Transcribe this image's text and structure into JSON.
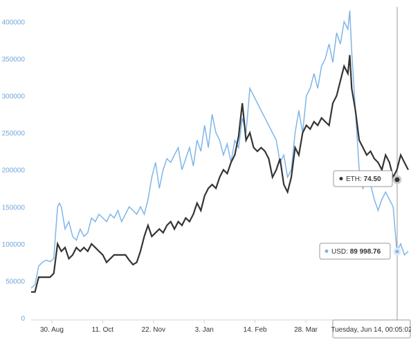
{
  "chart_data": {
    "type": "line",
    "x_labels": [
      "30. Aug",
      "11. Oct",
      "22. Nov",
      "3. Jan",
      "14. Feb",
      "28. Mar"
    ],
    "y_ticks": [
      0,
      50000,
      100000,
      150000,
      200000,
      250000,
      300000,
      350000,
      400000
    ],
    "ylim": [
      0,
      420000
    ],
    "grid": false,
    "colors": {
      "usd": "#7eb5e8",
      "eth": "#333333",
      "axis": "#ccd6eb",
      "crosshair": "#999999"
    },
    "series": [
      {
        "name": "USD",
        "points": [
          [
            0.0,
            40000
          ],
          [
            0.01,
            45000
          ],
          [
            0.02,
            70000
          ],
          [
            0.03,
            75000
          ],
          [
            0.04,
            78000
          ],
          [
            0.05,
            76000
          ],
          [
            0.06,
            80000
          ],
          [
            0.07,
            150000
          ],
          [
            0.075,
            155000
          ],
          [
            0.08,
            150000
          ],
          [
            0.09,
            120000
          ],
          [
            0.1,
            130000
          ],
          [
            0.11,
            110000
          ],
          [
            0.12,
            105000
          ],
          [
            0.13,
            120000
          ],
          [
            0.14,
            110000
          ],
          [
            0.15,
            115000
          ],
          [
            0.16,
            135000
          ],
          [
            0.17,
            130000
          ],
          [
            0.18,
            140000
          ],
          [
            0.19,
            135000
          ],
          [
            0.2,
            130000
          ],
          [
            0.21,
            140000
          ],
          [
            0.22,
            135000
          ],
          [
            0.23,
            145000
          ],
          [
            0.24,
            130000
          ],
          [
            0.25,
            140000
          ],
          [
            0.26,
            150000
          ],
          [
            0.27,
            145000
          ],
          [
            0.28,
            140000
          ],
          [
            0.29,
            150000
          ],
          [
            0.3,
            140000
          ],
          [
            0.31,
            160000
          ],
          [
            0.32,
            190000
          ],
          [
            0.33,
            210000
          ],
          [
            0.34,
            175000
          ],
          [
            0.35,
            200000
          ],
          [
            0.36,
            215000
          ],
          [
            0.37,
            210000
          ],
          [
            0.38,
            220000
          ],
          [
            0.39,
            230000
          ],
          [
            0.4,
            200000
          ],
          [
            0.41,
            215000
          ],
          [
            0.42,
            230000
          ],
          [
            0.43,
            205000
          ],
          [
            0.44,
            240000
          ],
          [
            0.45,
            225000
          ],
          [
            0.46,
            260000
          ],
          [
            0.47,
            230000
          ],
          [
            0.48,
            275000
          ],
          [
            0.49,
            250000
          ],
          [
            0.5,
            240000
          ],
          [
            0.51,
            220000
          ],
          [
            0.52,
            235000
          ],
          [
            0.53,
            210000
          ],
          [
            0.54,
            240000
          ],
          [
            0.55,
            230000
          ],
          [
            0.56,
            270000
          ],
          [
            0.57,
            250000
          ],
          [
            0.58,
            310000
          ],
          [
            0.59,
            300000
          ],
          [
            0.6,
            290000
          ],
          [
            0.61,
            280000
          ],
          [
            0.62,
            270000
          ],
          [
            0.63,
            260000
          ],
          [
            0.64,
            250000
          ],
          [
            0.65,
            240000
          ],
          [
            0.66,
            210000
          ],
          [
            0.67,
            220000
          ],
          [
            0.68,
            190000
          ],
          [
            0.69,
            200000
          ],
          [
            0.7,
            250000
          ],
          [
            0.71,
            280000
          ],
          [
            0.72,
            250000
          ],
          [
            0.73,
            300000
          ],
          [
            0.74,
            310000
          ],
          [
            0.75,
            330000
          ],
          [
            0.76,
            310000
          ],
          [
            0.77,
            340000
          ],
          [
            0.78,
            350000
          ],
          [
            0.79,
            370000
          ],
          [
            0.8,
            345000
          ],
          [
            0.81,
            385000
          ],
          [
            0.82,
            370000
          ],
          [
            0.83,
            400000
          ],
          [
            0.84,
            390000
          ],
          [
            0.845,
            415000
          ],
          [
            0.85,
            360000
          ],
          [
            0.86,
            280000
          ],
          [
            0.87,
            200000
          ],
          [
            0.88,
            175000
          ],
          [
            0.89,
            190000
          ],
          [
            0.9,
            180000
          ],
          [
            0.91,
            160000
          ],
          [
            0.92,
            145000
          ],
          [
            0.93,
            160000
          ],
          [
            0.94,
            170000
          ],
          [
            0.95,
            160000
          ],
          [
            0.96,
            150000
          ],
          [
            0.97,
            90000
          ],
          [
            0.98,
            100000
          ],
          [
            0.99,
            85000
          ],
          [
            1.0,
            90000
          ]
        ]
      },
      {
        "name": "ETH",
        "points": [
          [
            0.0,
            35000
          ],
          [
            0.01,
            35000
          ],
          [
            0.02,
            55000
          ],
          [
            0.05,
            55000
          ],
          [
            0.06,
            60000
          ],
          [
            0.07,
            100000
          ],
          [
            0.08,
            90000
          ],
          [
            0.09,
            95000
          ],
          [
            0.1,
            80000
          ],
          [
            0.11,
            85000
          ],
          [
            0.12,
            95000
          ],
          [
            0.13,
            90000
          ],
          [
            0.14,
            95000
          ],
          [
            0.15,
            90000
          ],
          [
            0.16,
            100000
          ],
          [
            0.17,
            95000
          ],
          [
            0.18,
            90000
          ],
          [
            0.19,
            85000
          ],
          [
            0.2,
            75000
          ],
          [
            0.21,
            80000
          ],
          [
            0.22,
            85000
          ],
          [
            0.25,
            85000
          ],
          [
            0.26,
            78000
          ],
          [
            0.27,
            72000
          ],
          [
            0.28,
            75000
          ],
          [
            0.29,
            90000
          ],
          [
            0.3,
            110000
          ],
          [
            0.31,
            125000
          ],
          [
            0.32,
            110000
          ],
          [
            0.33,
            115000
          ],
          [
            0.34,
            120000
          ],
          [
            0.35,
            115000
          ],
          [
            0.36,
            125000
          ],
          [
            0.37,
            130000
          ],
          [
            0.38,
            120000
          ],
          [
            0.39,
            130000
          ],
          [
            0.4,
            125000
          ],
          [
            0.41,
            135000
          ],
          [
            0.42,
            130000
          ],
          [
            0.43,
            140000
          ],
          [
            0.44,
            155000
          ],
          [
            0.45,
            145000
          ],
          [
            0.46,
            165000
          ],
          [
            0.47,
            175000
          ],
          [
            0.48,
            180000
          ],
          [
            0.49,
            175000
          ],
          [
            0.5,
            190000
          ],
          [
            0.51,
            200000
          ],
          [
            0.52,
            195000
          ],
          [
            0.53,
            210000
          ],
          [
            0.54,
            220000
          ],
          [
            0.55,
            245000
          ],
          [
            0.56,
            290000
          ],
          [
            0.57,
            240000
          ],
          [
            0.58,
            250000
          ],
          [
            0.59,
            230000
          ],
          [
            0.6,
            225000
          ],
          [
            0.61,
            230000
          ],
          [
            0.62,
            225000
          ],
          [
            0.63,
            215000
          ],
          [
            0.64,
            190000
          ],
          [
            0.65,
            200000
          ],
          [
            0.66,
            215000
          ],
          [
            0.67,
            180000
          ],
          [
            0.68,
            170000
          ],
          [
            0.69,
            190000
          ],
          [
            0.7,
            230000
          ],
          [
            0.71,
            220000
          ],
          [
            0.72,
            250000
          ],
          [
            0.73,
            260000
          ],
          [
            0.74,
            255000
          ],
          [
            0.75,
            265000
          ],
          [
            0.76,
            260000
          ],
          [
            0.77,
            270000
          ],
          [
            0.78,
            265000
          ],
          [
            0.79,
            260000
          ],
          [
            0.8,
            290000
          ],
          [
            0.81,
            300000
          ],
          [
            0.82,
            320000
          ],
          [
            0.83,
            340000
          ],
          [
            0.84,
            330000
          ],
          [
            0.845,
            355000
          ],
          [
            0.85,
            310000
          ],
          [
            0.86,
            280000
          ],
          [
            0.87,
            240000
          ],
          [
            0.88,
            230000
          ],
          [
            0.89,
            220000
          ],
          [
            0.9,
            225000
          ],
          [
            0.91,
            215000
          ],
          [
            0.92,
            210000
          ],
          [
            0.93,
            200000
          ],
          [
            0.94,
            220000
          ],
          [
            0.95,
            210000
          ],
          [
            0.96,
            190000
          ],
          [
            0.97,
            200000
          ],
          [
            0.98,
            220000
          ],
          [
            0.99,
            210000
          ],
          [
            1.0,
            200000
          ]
        ]
      }
    ],
    "tooltips": {
      "eth": {
        "label": "ETH",
        "value": "74.50"
      },
      "usd": {
        "label": "USD",
        "value": "89 998.76"
      },
      "date": "Tuesday, Jun 14, 00:05:02"
    }
  }
}
